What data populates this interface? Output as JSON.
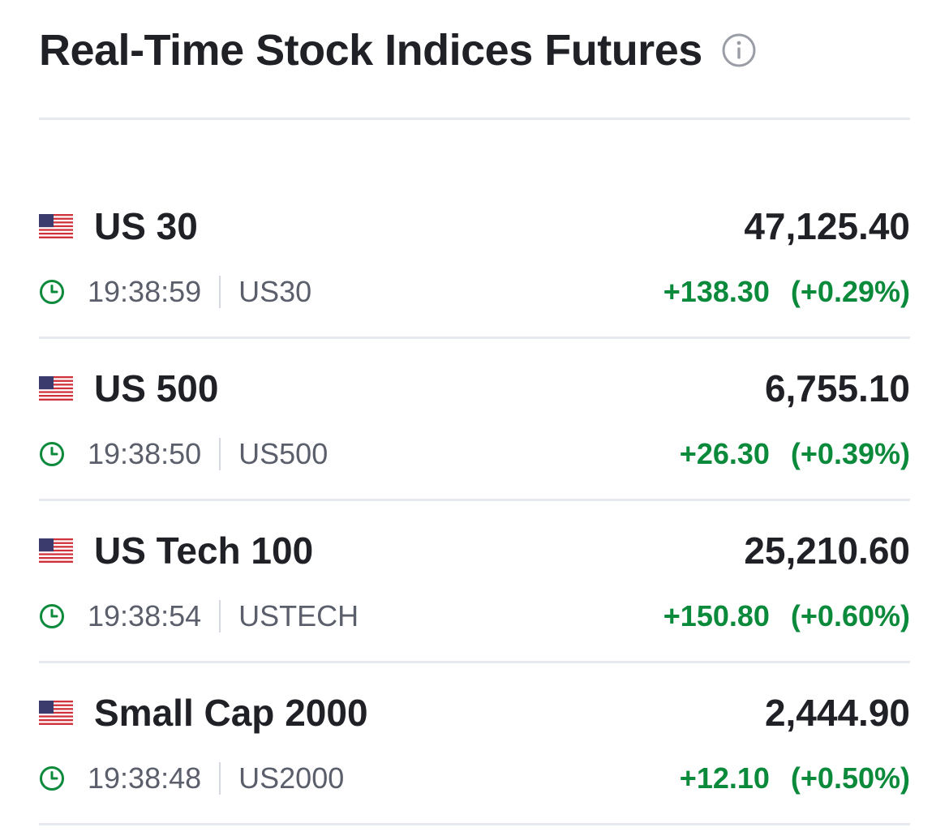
{
  "header": {
    "title": "Real-Time Stock Indices Futures",
    "info_icon": "info-icon"
  },
  "colors": {
    "positive": "#0b8a3b",
    "text": "#1f2126",
    "muted": "#5b5f6b",
    "divider": "#e6e9f0"
  },
  "indices": [
    {
      "flag": "us-flag-icon",
      "name": "US 30",
      "price": "47,125.40",
      "time": "19:38:59",
      "symbol": "US30",
      "change": "+138.30",
      "change_pct": "(+0.29%)"
    },
    {
      "flag": "us-flag-icon",
      "name": "US 500",
      "price": "6,755.10",
      "time": "19:38:50",
      "symbol": "US500",
      "change": "+26.30",
      "change_pct": "(+0.39%)"
    },
    {
      "flag": "us-flag-icon",
      "name": "US Tech 100",
      "price": "25,210.60",
      "time": "19:38:54",
      "symbol": "USTECH",
      "change": "+150.80",
      "change_pct": "(+0.60%)"
    },
    {
      "flag": "us-flag-icon",
      "name": "Small Cap 2000",
      "price": "2,444.90",
      "time": "19:38:48",
      "symbol": "US2000",
      "change": "+12.10",
      "change_pct": "(+0.50%)"
    }
  ]
}
